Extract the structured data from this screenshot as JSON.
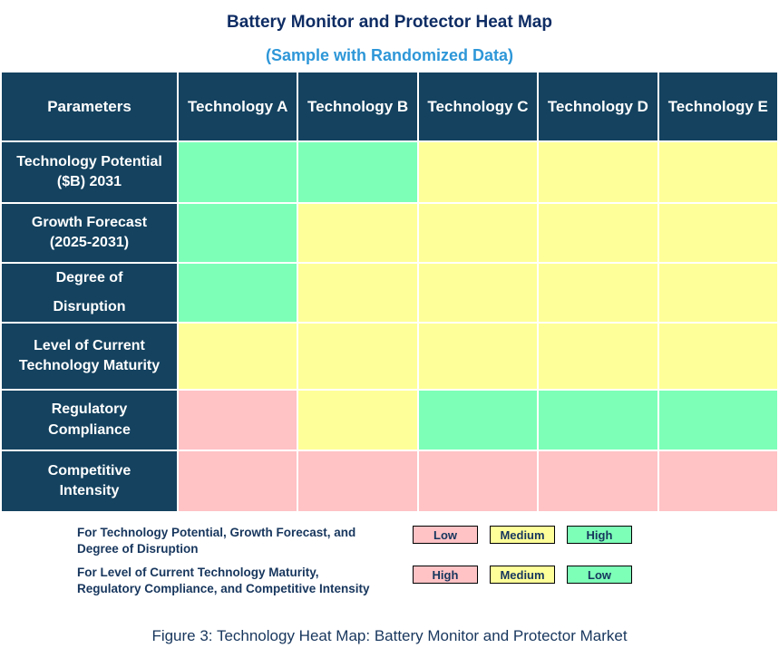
{
  "title": "Battery Monitor and Protector Heat Map",
  "subtitle": "(Sample with Randomized Data)",
  "colors": {
    "navy": "#14425F",
    "green": "#7DFFB8",
    "yellow": "#FFFF99",
    "pink": "#FFC2C5",
    "title_navy": "#0F2D64",
    "subtitle_blue": "#2E97D8",
    "legend_navy": "#17365D"
  },
  "table": {
    "columns": [
      "Parameters",
      "Technology A",
      "Technology B",
      "Technology C",
      "Technology D",
      "Technology E"
    ],
    "rows": [
      {
        "label": "Technology Potential\n($B) 2031",
        "cells": [
          "green",
          "green",
          "yellow",
          "yellow",
          "yellow"
        ]
      },
      {
        "label": "Growth Forecast\n(2025-2031)",
        "cells": [
          "green",
          "yellow",
          "yellow",
          "yellow",
          "yellow"
        ]
      },
      {
        "label": "Degree of\nDisruption",
        "cells": [
          "green",
          "yellow",
          "yellow",
          "yellow",
          "yellow"
        ]
      },
      {
        "label": "Level of Current\nTechnology Maturity",
        "cells": [
          "yellow",
          "yellow",
          "yellow",
          "yellow",
          "yellow"
        ]
      },
      {
        "label": "Regulatory\nCompliance",
        "cells": [
          "pink",
          "yellow",
          "green",
          "green",
          "green"
        ]
      },
      {
        "label": "Competitive\nIntensity",
        "cells": [
          "pink",
          "pink",
          "pink",
          "pink",
          "pink"
        ]
      }
    ]
  },
  "legend": {
    "rows": [
      {
        "text": "For Technology Potential, Growth Forecast, and\nDegree of Disruption",
        "items": [
          {
            "label": "Low",
            "color": "pink"
          },
          {
            "label": "Medium",
            "color": "yellow"
          },
          {
            "label": "High",
            "color": "green"
          }
        ]
      },
      {
        "text": "For Level of Current Technology Maturity,\nRegulatory Compliance, and Competitive Intensity",
        "items": [
          {
            "label": "High",
            "color": "pink"
          },
          {
            "label": "Medium",
            "color": "yellow"
          },
          {
            "label": "Low",
            "color": "green"
          }
        ]
      }
    ]
  },
  "caption": "Figure 3: Technology Heat Map: Battery Monitor and Protector Market",
  "chart_data": {
    "type": "heatmap",
    "title": "Battery Monitor and Protector Heat Map",
    "subtitle": "(Sample with Randomized Data)",
    "columns": [
      "Technology A",
      "Technology B",
      "Technology C",
      "Technology D",
      "Technology E"
    ],
    "rows": [
      "Technology Potential ($B) 2031",
      "Growth Forecast (2025-2031)",
      "Degree of Disruption",
      "Level of Current Technology Maturity",
      "Regulatory Compliance",
      "Competitive Intensity"
    ],
    "values": [
      [
        "High",
        "High",
        "Medium",
        "Medium",
        "Medium"
      ],
      [
        "High",
        "Medium",
        "Medium",
        "Medium",
        "Medium"
      ],
      [
        "High",
        "Medium",
        "Medium",
        "Medium",
        "Medium"
      ],
      [
        "Medium",
        "Medium",
        "Medium",
        "Medium",
        "Medium"
      ],
      [
        "High",
        "Medium",
        "Low",
        "Low",
        "Low"
      ],
      [
        "High",
        "High",
        "High",
        "High",
        "High"
      ]
    ],
    "cell_colors": [
      [
        "green",
        "green",
        "yellow",
        "yellow",
        "yellow"
      ],
      [
        "green",
        "yellow",
        "yellow",
        "yellow",
        "yellow"
      ],
      [
        "green",
        "yellow",
        "yellow",
        "yellow",
        "yellow"
      ],
      [
        "yellow",
        "yellow",
        "yellow",
        "yellow",
        "yellow"
      ],
      [
        "pink",
        "yellow",
        "green",
        "green",
        "green"
      ],
      [
        "pink",
        "pink",
        "pink",
        "pink",
        "pink"
      ]
    ],
    "legend_scales": [
      {
        "applies_to": "Technology Potential, Growth Forecast, Degree of Disruption",
        "pink": "Low",
        "yellow": "Medium",
        "green": "High"
      },
      {
        "applies_to": "Level of Current Technology Maturity, Regulatory Compliance, Competitive Intensity",
        "pink": "High",
        "yellow": "Medium",
        "green": "Low"
      }
    ],
    "legend_position": "bottom-left",
    "grid": true
  }
}
